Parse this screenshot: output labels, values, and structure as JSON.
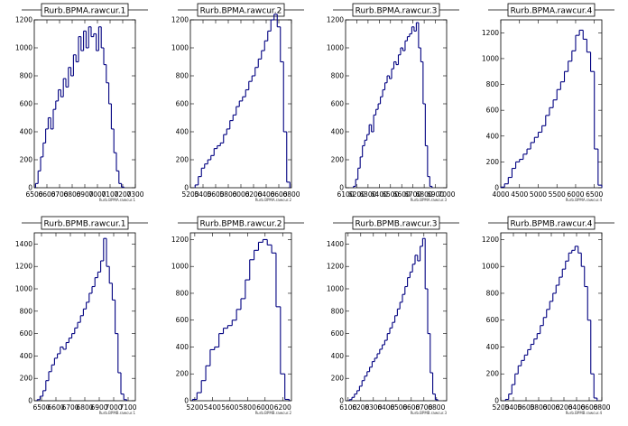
{
  "chart_data": [
    {
      "type": "histogram",
      "title": "Rurb.BPMA.rawcur.1",
      "xlabel": "Rurb.BPMA.rawcur.1",
      "xlim": [
        6500,
        7300
      ],
      "ylim": [
        0,
        1200
      ],
      "xticks": [
        6500,
        6600,
        6700,
        6800,
        6900,
        7000,
        7100,
        7200,
        7300
      ],
      "xtick_labels": [
        "6500",
        "6600",
        "6700",
        "6800",
        "6900",
        "7000",
        "7100",
        "7200",
        "7300"
      ],
      "yticks": [
        0,
        200,
        400,
        600,
        800,
        1000,
        1200
      ],
      "x": [
        6520,
        6540,
        6560,
        6580,
        6600,
        6620,
        6640,
        6660,
        6680,
        6700,
        6720,
        6740,
        6760,
        6780,
        6800,
        6820,
        6840,
        6860,
        6880,
        6900,
        6920,
        6940,
        6960,
        6980,
        7000,
        7020,
        7040,
        7060,
        7080,
        7100,
        7120,
        7140,
        7160,
        7180,
        7200
      ],
      "y": [
        30,
        120,
        220,
        320,
        420,
        500,
        420,
        560,
        620,
        700,
        650,
        780,
        720,
        860,
        800,
        950,
        900,
        1080,
        980,
        1120,
        1000,
        1150,
        1080,
        1100,
        980,
        1150,
        1000,
        880,
        750,
        600,
        420,
        250,
        120,
        30,
        5
      ]
    },
    {
      "type": "histogram",
      "title": "Rurb.BPMA.rawcur.2",
      "xlabel": "Rurb.BPMA.rawcur.2",
      "xlim": [
        5200,
        6800
      ],
      "ylim": [
        0,
        1200
      ],
      "xticks": [
        5200,
        5400,
        5600,
        5800,
        6000,
        6200,
        6400,
        6600,
        6800
      ],
      "xtick_labels": [
        "5200",
        "5400",
        "5600",
        "5800",
        "6000",
        "6200",
        "6400",
        "6600",
        "6800"
      ],
      "yticks": [
        0,
        200,
        400,
        600,
        800,
        1000,
        1200
      ],
      "x": [
        5300,
        5350,
        5400,
        5450,
        5500,
        5550,
        5600,
        5650,
        5700,
        5750,
        5800,
        5850,
        5900,
        5950,
        6000,
        6050,
        6100,
        6150,
        6200,
        6250,
        6300,
        6350,
        6400,
        6450,
        6500,
        6550,
        6600,
        6650,
        6700,
        6750
      ],
      "y": [
        20,
        80,
        140,
        170,
        200,
        230,
        280,
        300,
        320,
        380,
        420,
        480,
        520,
        580,
        620,
        650,
        700,
        760,
        800,
        860,
        920,
        980,
        1050,
        1120,
        1200,
        1240,
        1150,
        900,
        400,
        40
      ]
    },
    {
      "type": "histogram",
      "title": "Rurb.BPMA.rawcur.3",
      "xlabel": "Rurb.BPMA.rawcur.3",
      "xlim": [
        6100,
        7000
      ],
      "ylim": [
        0,
        1200
      ],
      "xticks": [
        6100,
        6200,
        6300,
        6400,
        6500,
        6600,
        6700,
        6800,
        6900,
        7000
      ],
      "xtick_labels": [
        "6100",
        "6200",
        "6300",
        "6400",
        "6500",
        "6600",
        "6700",
        "6800",
        "6900",
        "7000"
      ],
      "yticks": [
        0,
        200,
        400,
        600,
        800,
        1000,
        1200
      ],
      "x": [
        6180,
        6200,
        6220,
        6240,
        6260,
        6280,
        6300,
        6320,
        6340,
        6360,
        6380,
        6400,
        6420,
        6440,
        6460,
        6480,
        6500,
        6520,
        6540,
        6560,
        6580,
        6600,
        6620,
        6640,
        6660,
        6680,
        6700,
        6720,
        6740,
        6760,
        6780,
        6800,
        6820,
        6840,
        6860
      ],
      "y": [
        10,
        60,
        140,
        220,
        300,
        340,
        380,
        450,
        400,
        520,
        560,
        600,
        650,
        700,
        750,
        800,
        780,
        850,
        900,
        880,
        950,
        1000,
        980,
        1050,
        1080,
        1100,
        1150,
        1120,
        1180,
        1000,
        900,
        600,
        300,
        80,
        10
      ]
    },
    {
      "type": "histogram",
      "title": "Rurb.BPMA.rawcur.4",
      "xlabel": "Rurb.BPMA.rawcur.4",
      "xlim": [
        4000,
        6700
      ],
      "ylim": [
        0,
        1300
      ],
      "xticks": [
        4000,
        4500,
        5000,
        5500,
        6000,
        6500
      ],
      "xtick_labels": [
        "4000",
        "4500",
        "5000",
        "5500",
        "6000",
        "6500"
      ],
      "yticks": [
        0,
        200,
        400,
        600,
        800,
        1000,
        1200
      ],
      "x": [
        4050,
        4150,
        4250,
        4350,
        4450,
        4550,
        4650,
        4750,
        4850,
        4950,
        5050,
        5150,
        5250,
        5350,
        5450,
        5550,
        5650,
        5750,
        5850,
        5950,
        6050,
        6150,
        6250,
        6350,
        6450,
        6550,
        6650
      ],
      "y": [
        5,
        30,
        80,
        150,
        200,
        220,
        260,
        300,
        350,
        390,
        430,
        480,
        560,
        620,
        680,
        760,
        820,
        900,
        980,
        1060,
        1180,
        1220,
        1150,
        1050,
        900,
        300,
        20
      ]
    },
    {
      "type": "histogram",
      "title": "Rurb.BPMB.rawcur.1",
      "xlabel": "Rurb.BPMB.rawcur.1",
      "xlim": [
        6450,
        7150
      ],
      "ylim": [
        0,
        1500
      ],
      "xticks": [
        6500,
        6600,
        6700,
        6800,
        6900,
        7000,
        7100
      ],
      "xtick_labels": [
        "6500",
        "6600",
        "6700",
        "6800",
        "6900",
        "7000",
        "7100"
      ],
      "yticks": [
        0,
        200,
        400,
        600,
        800,
        1000,
        1200,
        1400
      ],
      "x": [
        6480,
        6500,
        6520,
        6540,
        6560,
        6580,
        6600,
        6620,
        6640,
        6660,
        6680,
        6700,
        6720,
        6740,
        6760,
        6780,
        6800,
        6820,
        6840,
        6860,
        6880,
        6900,
        6920,
        6940,
        6960,
        6980,
        7000,
        7020,
        7040,
        7060,
        7080
      ],
      "y": [
        10,
        40,
        90,
        180,
        260,
        320,
        380,
        420,
        480,
        460,
        520,
        560,
        600,
        650,
        700,
        760,
        820,
        880,
        960,
        1020,
        1100,
        1150,
        1250,
        1450,
        1200,
        1050,
        900,
        600,
        250,
        60,
        10
      ]
    },
    {
      "type": "histogram",
      "title": "Rurb.BPMB.rawcur.2",
      "xlabel": "Rurb.BPMB.rawcur.2",
      "xlim": [
        5150,
        6300
      ],
      "ylim": [
        0,
        1250
      ],
      "xticks": [
        5200,
        5400,
        5600,
        5800,
        6000,
        6200
      ],
      "xtick_labels": [
        "5200",
        "5400",
        "5600",
        "5800",
        "6000",
        "6200"
      ],
      "yticks": [
        0,
        200,
        400,
        600,
        800,
        1000,
        1200
      ],
      "x": [
        5200,
        5250,
        5300,
        5350,
        5400,
        5450,
        5500,
        5550,
        5600,
        5650,
        5700,
        5750,
        5800,
        5850,
        5900,
        5950,
        6000,
        6050,
        6100,
        6150,
        6200,
        6250
      ],
      "y": [
        10,
        60,
        150,
        260,
        380,
        400,
        500,
        540,
        560,
        600,
        680,
        760,
        900,
        1050,
        1120,
        1180,
        1200,
        1160,
        1100,
        700,
        200,
        10
      ]
    },
    {
      "type": "histogram",
      "title": "Rurb.BPMB.rawcur.3",
      "xlabel": "Rurb.BPMB.rawcur.3",
      "xlim": [
        6080,
        6880
      ],
      "ylim": [
        0,
        1500
      ],
      "xticks": [
        6100,
        6200,
        6300,
        6400,
        6500,
        6600,
        6700,
        6800
      ],
      "xtick_labels": [
        "6100",
        "6200",
        "6300",
        "6400",
        "6500",
        "6600",
        "6700",
        "6800"
      ],
      "yticks": [
        0,
        200,
        400,
        600,
        800,
        1000,
        1200,
        1400
      ],
      "x": [
        6120,
        6140,
        6160,
        6180,
        6200,
        6220,
        6240,
        6260,
        6280,
        6300,
        6320,
        6340,
        6360,
        6380,
        6400,
        6420,
        6440,
        6460,
        6480,
        6500,
        6520,
        6540,
        6560,
        6580,
        6600,
        6620,
        6640,
        6660,
        6680,
        6700,
        6720,
        6740,
        6760,
        6780,
        6800
      ],
      "y": [
        10,
        30,
        60,
        90,
        130,
        180,
        220,
        260,
        300,
        350,
        380,
        420,
        460,
        500,
        540,
        600,
        650,
        700,
        760,
        820,
        880,
        950,
        1020,
        1100,
        1150,
        1220,
        1300,
        1250,
        1380,
        1450,
        1000,
        600,
        250,
        60,
        10
      ]
    },
    {
      "type": "histogram",
      "title": "Rurb.BPMB.rawcur.4",
      "xlabel": "Rurb.BPMB.rawcur.4",
      "xlim": [
        5200,
        6800
      ],
      "ylim": [
        0,
        1250
      ],
      "xticks": [
        5200,
        5400,
        5600,
        5800,
        6000,
        6200,
        6400,
        6600,
        6800
      ],
      "xtick_labels": [
        "5200",
        "5400",
        "5600",
        "5800",
        "6000",
        "6200",
        "6400",
        "6600",
        "6800"
      ],
      "yticks": [
        0,
        200,
        400,
        600,
        800,
        1000,
        1200
      ],
      "x": [
        5300,
        5350,
        5400,
        5450,
        5500,
        5550,
        5600,
        5650,
        5700,
        5750,
        5800,
        5850,
        5900,
        5950,
        6000,
        6050,
        6100,
        6150,
        6200,
        6250,
        6300,
        6350,
        6400,
        6450,
        6500,
        6550,
        6600,
        6650,
        6700
      ],
      "y": [
        10,
        50,
        120,
        200,
        260,
        300,
        340,
        380,
        420,
        460,
        500,
        560,
        620,
        680,
        740,
        800,
        860,
        920,
        980,
        1040,
        1100,
        1120,
        1150,
        1100,
        1000,
        850,
        600,
        200,
        20
      ]
    }
  ]
}
